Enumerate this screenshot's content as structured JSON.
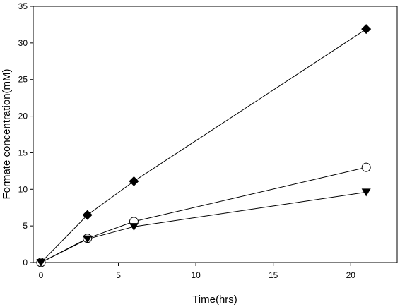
{
  "chart_data": {
    "type": "line",
    "title": "",
    "xlabel": "Time(hrs)",
    "ylabel": "Formate concentration(mM)",
    "xlim": [
      -0.5,
      23
    ],
    "ylim": [
      0,
      35
    ],
    "x_ticks": [
      0,
      5,
      10,
      15,
      20
    ],
    "y_ticks": [
      0,
      5,
      10,
      15,
      20,
      25,
      30,
      35
    ],
    "grid": false,
    "legend": "none",
    "series": [
      {
        "marker": "diamond-filled",
        "color": "#000000",
        "points": [
          {
            "x": 0,
            "y": 0
          },
          {
            "x": 3,
            "y": 6.5
          },
          {
            "x": 6,
            "y": 11.1
          },
          {
            "x": 21,
            "y": 31.9
          }
        ]
      },
      {
        "marker": "circle-open",
        "color": "#000000",
        "points": [
          {
            "x": 0,
            "y": 0
          },
          {
            "x": 3,
            "y": 3.3
          },
          {
            "x": 6,
            "y": 5.6
          },
          {
            "x": 21,
            "y": 13.0
          }
        ]
      },
      {
        "marker": "triangle-down-filled",
        "color": "#000000",
        "points": [
          {
            "x": 0,
            "y": 0
          },
          {
            "x": 3,
            "y": 3.2
          },
          {
            "x": 6,
            "y": 4.9
          },
          {
            "x": 21,
            "y": 9.6
          }
        ]
      }
    ]
  }
}
